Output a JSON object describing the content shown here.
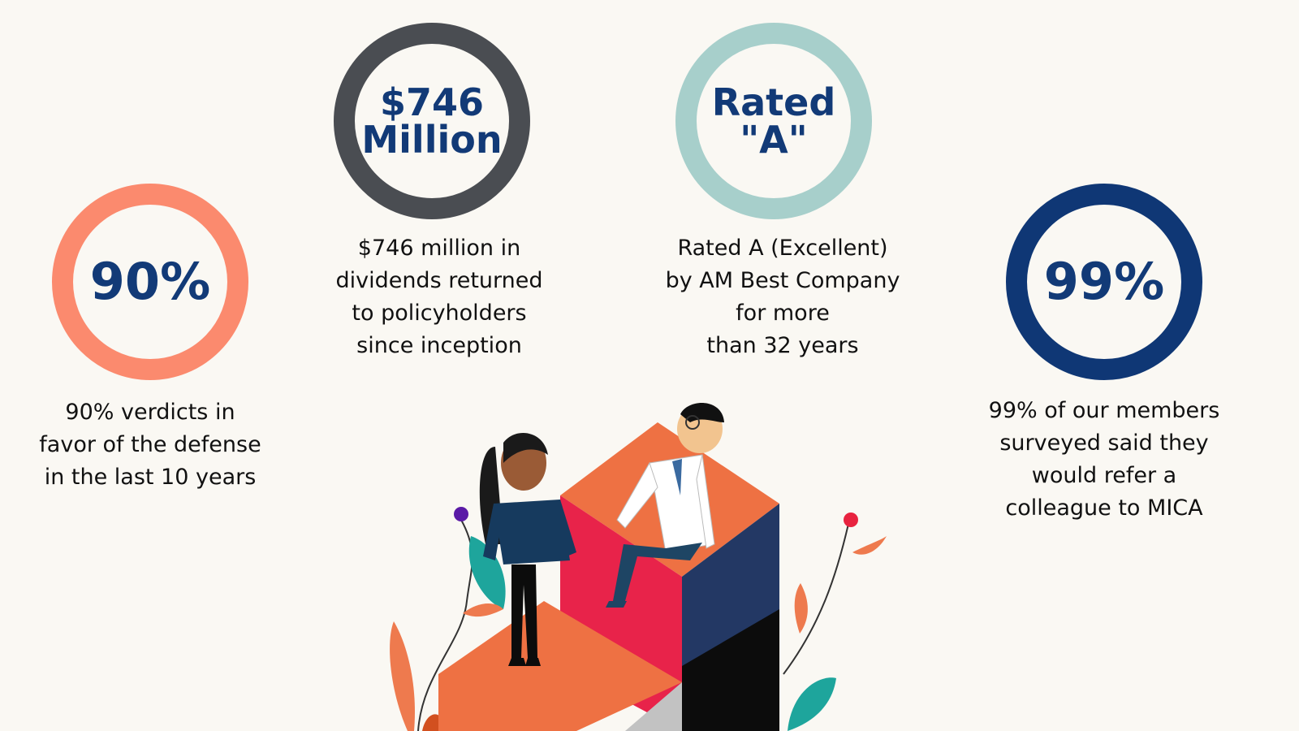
{
  "stats": [
    {
      "circle_value": "90%",
      "description": "90% verdicts in\nfavor of the defense\nin the last 10 years",
      "ring_color": "#fb8a6e"
    },
    {
      "circle_value": "$746\nMillion",
      "description": "$746 million in\ndividends returned\nto policyholders\nsince inception",
      "ring_color": "#4a4d52"
    },
    {
      "circle_value": "Rated\n\"A\"",
      "description": "Rated A (Excellent)\nby AM Best Company\nfor more\nthan 32 years",
      "ring_color": "#a7cfcb"
    },
    {
      "circle_value": "99%",
      "description": "99% of our members\nsurveyed said they\nwould refer a\ncolleague to MICA",
      "ring_color": "#0f3775"
    }
  ],
  "colors": {
    "background": "#faf8f3",
    "value_text": "#123a77",
    "body_text": "#111111"
  },
  "illustration": {
    "icon": "two-people-on-blocks-illustration"
  }
}
